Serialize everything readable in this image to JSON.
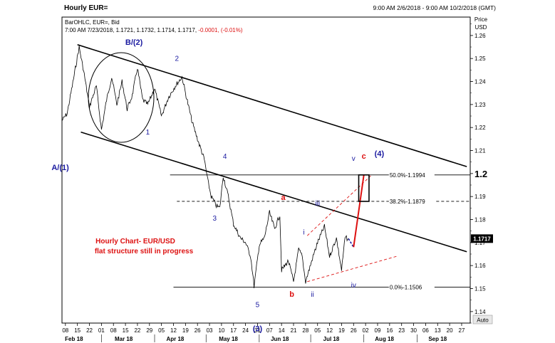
{
  "header": {
    "title": "Hourly EUR=",
    "range": "9:00 AM 2/6/2018 - 9:00 AM 10/2/2018 (GMT)",
    "legend_line1": "BarOHLC, EUR=, Bid",
    "legend_ohlc": "7:00 AM 7/23/2018, 1.1721, 1.1732, 1.1714, 1.1717,",
    "legend_change": "-0.0001, (-0.01%)",
    "price_label": "Price",
    "currency_label": "USD",
    "auto_label": "Auto"
  },
  "chart_data": {
    "type": "bar",
    "title": "Hourly EUR=",
    "ylabel": "Price USD",
    "ylim": [
      1.135,
      1.268
    ],
    "y_ticks": [
      "1.26",
      "1.25",
      "1.24",
      "1.23",
      "1.22",
      "1.21",
      "1.2",
      "1.19",
      "1.18",
      "1.17",
      "1.16",
      "1.15",
      "1.14"
    ],
    "y_tick_values": [
      1.26,
      1.25,
      1.24,
      1.23,
      1.22,
      1.21,
      1.2,
      1.19,
      1.18,
      1.17,
      1.16,
      1.15,
      1.14
    ],
    "x_ticks": [
      "08",
      "15",
      "22",
      "01",
      "08",
      "15",
      "22",
      "29",
      "05",
      "12",
      "19",
      "26",
      "03",
      "10",
      "17",
      "24",
      "31",
      "07",
      "14",
      "21",
      "28",
      "05",
      "12",
      "19",
      "26",
      "02",
      "09",
      "16",
      "23",
      "30",
      "06",
      "13",
      "20",
      "27"
    ],
    "x_months": [
      "Feb 18",
      "Mar 18",
      "Apr 18",
      "May 18",
      "Jun 18",
      "Jul 18",
      "Aug 18",
      "Sep 18"
    ],
    "current_price": "1.1717",
    "price_path": [
      {
        "x": "2018-02-06",
        "y": 1.223
      },
      {
        "x": "2018-02-09",
        "y": 1.226
      },
      {
        "x": "2018-02-12",
        "y": 1.238
      },
      {
        "x": "2018-02-16",
        "y": 1.255
      },
      {
        "x": "2018-02-19",
        "y": 1.243
      },
      {
        "x": "2018-02-22",
        "y": 1.229
      },
      {
        "x": "2018-02-26",
        "y": 1.238
      },
      {
        "x": "2018-03-01",
        "y": 1.219
      },
      {
        "x": "2018-03-04",
        "y": 1.232
      },
      {
        "x": "2018-03-07",
        "y": 1.242
      },
      {
        "x": "2018-03-10",
        "y": 1.23
      },
      {
        "x": "2018-03-13",
        "y": 1.24
      },
      {
        "x": "2018-03-16",
        "y": 1.228
      },
      {
        "x": "2018-03-19",
        "y": 1.234
      },
      {
        "x": "2018-03-22",
        "y": 1.246
      },
      {
        "x": "2018-03-25",
        "y": 1.232
      },
      {
        "x": "2018-03-28",
        "y": 1.23
      },
      {
        "x": "2018-04-01",
        "y": 1.237
      },
      {
        "x": "2018-04-05",
        "y": 1.225
      },
      {
        "x": "2018-04-09",
        "y": 1.233
      },
      {
        "x": "2018-04-13",
        "y": 1.238
      },
      {
        "x": "2018-04-17",
        "y": 1.242
      },
      {
        "x": "2018-04-19",
        "y": 1.235
      },
      {
        "x": "2018-04-23",
        "y": 1.222
      },
      {
        "x": "2018-04-26",
        "y": 1.215
      },
      {
        "x": "2018-04-30",
        "y": 1.206
      },
      {
        "x": "2018-05-02",
        "y": 1.197
      },
      {
        "x": "2018-05-04",
        "y": 1.19
      },
      {
        "x": "2018-05-07",
        "y": 1.186
      },
      {
        "x": "2018-05-09",
        "y": 1.185
      },
      {
        "x": "2018-05-11",
        "y": 1.199
      },
      {
        "x": "2018-05-14",
        "y": 1.19
      },
      {
        "x": "2018-05-17",
        "y": 1.178
      },
      {
        "x": "2018-05-21",
        "y": 1.172
      },
      {
        "x": "2018-05-24",
        "y": 1.17
      },
      {
        "x": "2018-05-27",
        "y": 1.164
      },
      {
        "x": "2018-05-29",
        "y": 1.151
      },
      {
        "x": "2018-06-01",
        "y": 1.169
      },
      {
        "x": "2018-06-04",
        "y": 1.172
      },
      {
        "x": "2018-06-07",
        "y": 1.183
      },
      {
        "x": "2018-06-10",
        "y": 1.176
      },
      {
        "x": "2018-06-13",
        "y": 1.182
      },
      {
        "x": "2018-06-14",
        "y": 1.158
      },
      {
        "x": "2018-06-18",
        "y": 1.162
      },
      {
        "x": "2018-06-21",
        "y": 1.153
      },
      {
        "x": "2018-06-24",
        "y": 1.167
      },
      {
        "x": "2018-06-26",
        "y": 1.164
      },
      {
        "x": "2018-06-28",
        "y": 1.153
      },
      {
        "x": "2018-07-02",
        "y": 1.163
      },
      {
        "x": "2018-07-05",
        "y": 1.17
      },
      {
        "x": "2018-07-09",
        "y": 1.177
      },
      {
        "x": "2018-07-12",
        "y": 1.164
      },
      {
        "x": "2018-07-16",
        "y": 1.172
      },
      {
        "x": "2018-07-19",
        "y": 1.158
      },
      {
        "x": "2018-07-21",
        "y": 1.172
      },
      {
        "x": "2018-07-23",
        "y": 1.1717
      }
    ],
    "projection": {
      "blue_dashed": [
        {
          "x": "2018-07-23",
          "y": 1.1717
        },
        {
          "x": "2018-07-26",
          "y": 1.168
        }
      ],
      "red_wave_c": [
        {
          "x": "2018-07-26",
          "y": 1.168
        },
        {
          "x": "2018-08-01",
          "y": 1.1994
        }
      ]
    },
    "fibonacci": [
      {
        "label": "50.0%-1.1994",
        "value": 1.1994
      },
      {
        "label": "38.2%-1.1879",
        "value": 1.1879
      },
      {
        "label": "0.0%-1.1506",
        "value": 1.1506
      }
    ],
    "target_box": {
      "x_start": "2018-07-29",
      "x_end": "2018-08-04",
      "y_low": 1.1879,
      "y_high": 1.1994
    },
    "channel_lines": [
      {
        "name": "upper",
        "points": [
          {
            "x": "2018-02-15",
            "y": 1.256
          },
          {
            "x": "2018-09-30",
            "y": 1.203
          }
        ]
      },
      {
        "name": "lower",
        "points": [
          {
            "x": "2018-02-17",
            "y": 1.218
          },
          {
            "x": "2018-09-30",
            "y": 1.166
          }
        ]
      }
    ],
    "red_dashed_lines": [
      {
        "points": [
          {
            "x": "2018-06-29",
            "y": 1.153
          },
          {
            "x": "2018-08-20",
            "y": 1.164
          }
        ]
      },
      {
        "points": [
          {
            "x": "2018-06-29",
            "y": 1.173
          },
          {
            "x": "2018-08-05",
            "y": 1.199
          }
        ]
      }
    ],
    "annotations": [
      {
        "text": "B/(2)",
        "x": "2018-03-20",
        "y": 1.256,
        "color": "#1a1aa0",
        "bold": true
      },
      {
        "text": "2",
        "x": "2018-04-14",
        "y": 1.249,
        "color": "#1a1aa0"
      },
      {
        "text": "1",
        "x": "2018-03-28",
        "y": 1.217,
        "color": "#1a1aa0"
      },
      {
        "text": "A/(1)",
        "x": "2018-02-05",
        "y": 1.2015,
        "color": "#1a1aa0",
        "bold": true
      },
      {
        "text": "4",
        "x": "2018-05-12",
        "y": 1.2065,
        "color": "#1a1aa0"
      },
      {
        "text": "3",
        "x": "2018-05-06",
        "y": 1.1795,
        "color": "#1a1aa0"
      },
      {
        "text": "5",
        "x": "2018-05-31",
        "y": 1.142,
        "color": "#1a1aa0"
      },
      {
        "text": "(3)",
        "x": "2018-05-31",
        "y": 1.1315,
        "color": "#1a1aa0",
        "bold": true
      },
      {
        "text": "a",
        "x": "2018-06-15",
        "y": 1.1885,
        "color": "#dd1111",
        "bold": true
      },
      {
        "text": "b",
        "x": "2018-06-20",
        "y": 1.1465,
        "color": "#dd1111",
        "bold": true
      },
      {
        "text": "c",
        "x": "2018-08-01",
        "y": 1.2065,
        "color": "#dd1111",
        "bold": true
      },
      {
        "text": "i",
        "x": "2018-06-27",
        "y": 1.1735,
        "color": "#1a1aa0"
      },
      {
        "text": "ii",
        "x": "2018-07-02",
        "y": 1.1465,
        "color": "#1a1aa0"
      },
      {
        "text": "iii",
        "x": "2018-07-05",
        "y": 1.186,
        "color": "#1a1aa0"
      },
      {
        "text": "iv",
        "x": "2018-07-26",
        "y": 1.1505,
        "color": "#1a1aa0"
      },
      {
        "text": "v",
        "x": "2018-07-26",
        "y": 1.2055,
        "color": "#1a1aa0"
      },
      {
        "text": "(4)",
        "x": "2018-08-10",
        "y": 1.2075,
        "color": "#1a1aa0",
        "bold": true
      }
    ],
    "note": [
      "Hourly Chart- EUR/USD",
      "flat structure still in progress"
    ],
    "colors": {
      "price": "#000000",
      "wave_labels": "#1a1aa0",
      "abc_labels": "#dd1111",
      "note": "#dd1111",
      "projection": "#dd1111",
      "projection_blue": "#1a1aa0"
    }
  }
}
